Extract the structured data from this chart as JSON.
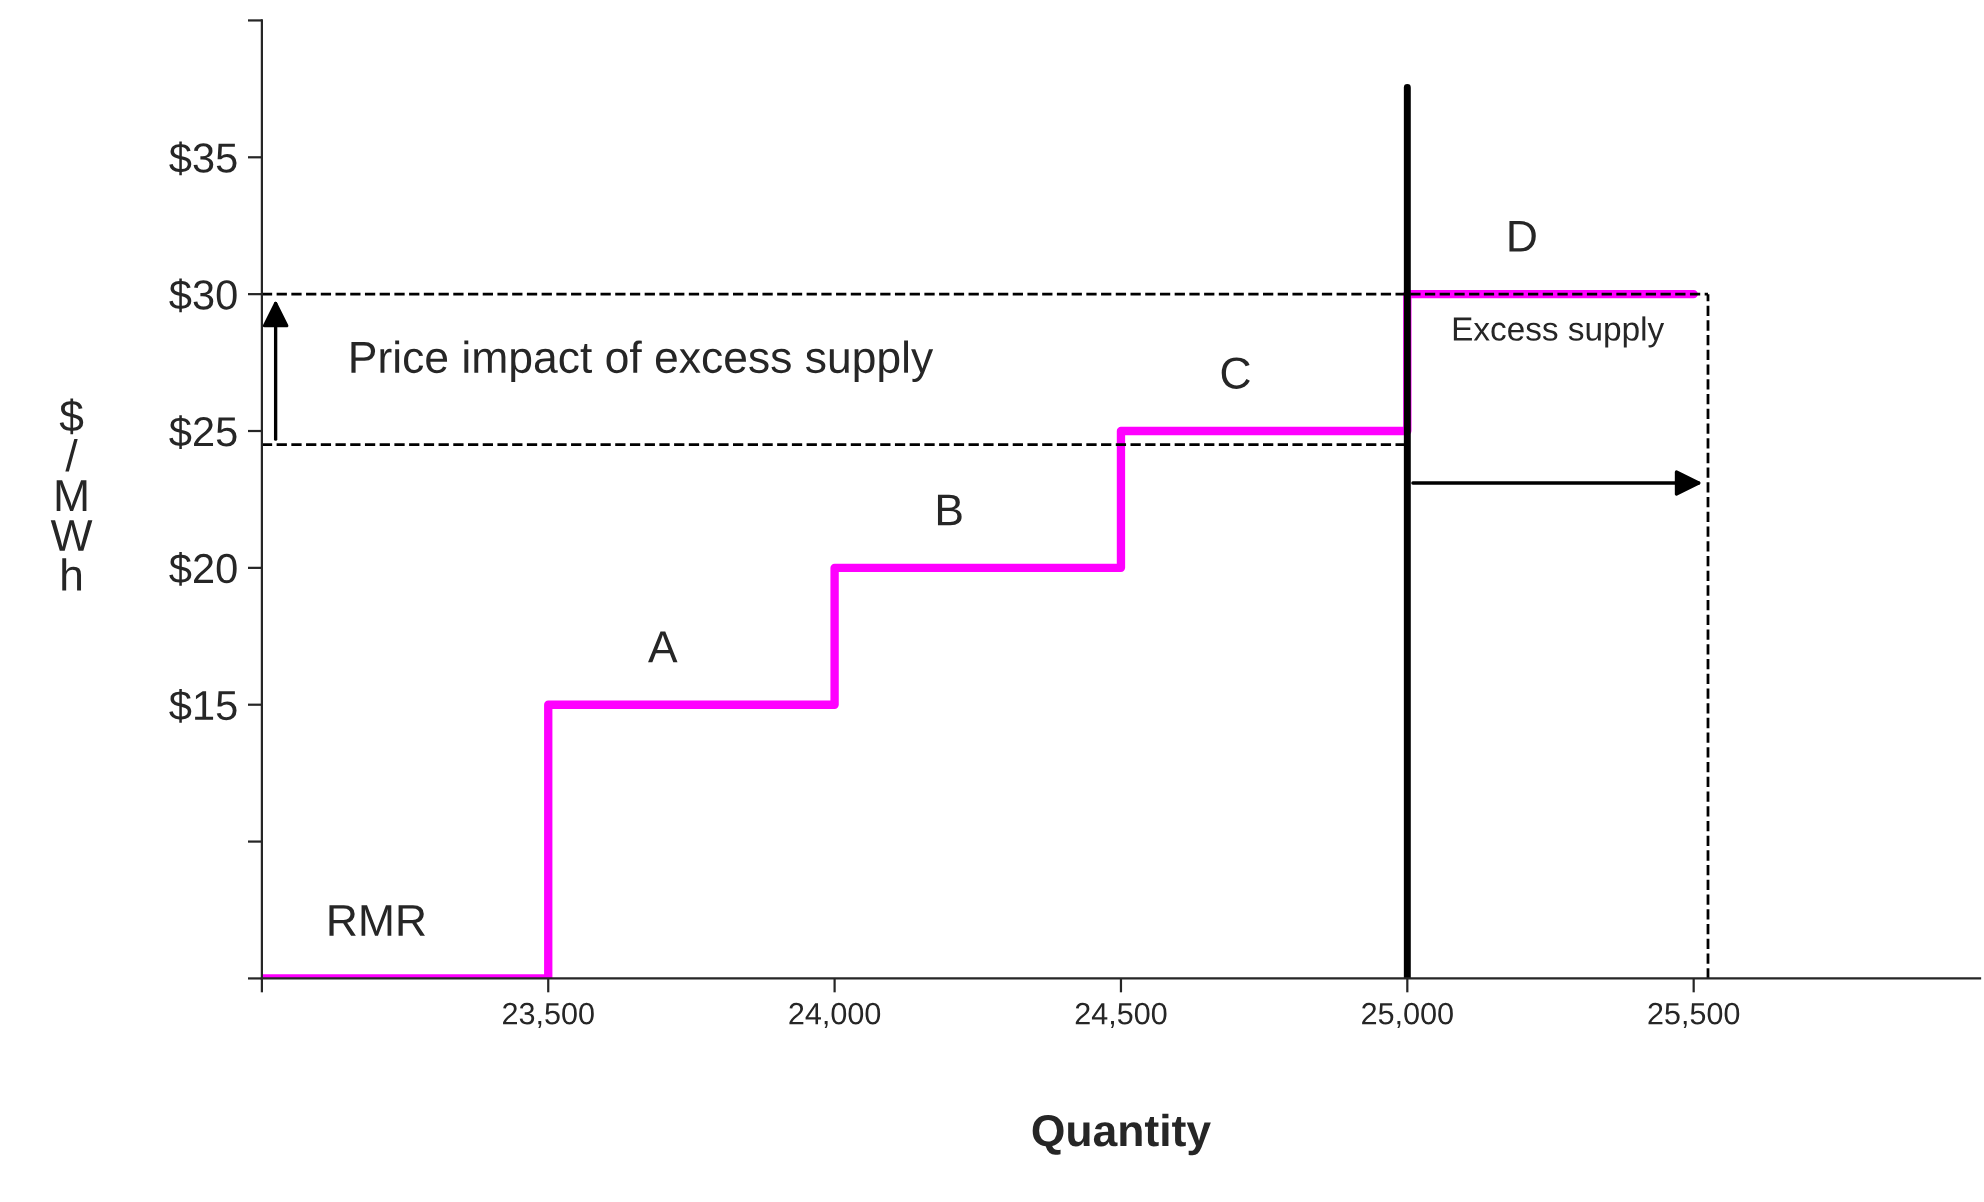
{
  "chart_data": {
    "type": "step",
    "xlabel": "Quantity",
    "ylabel": "$/MWh",
    "x": [
      23000,
      23500,
      24000,
      24500,
      25000,
      25500
    ],
    "series": [
      {
        "color": "#ff00ff",
        "values": [
          5,
          15,
          20,
          25,
          30,
          30
        ]
      }
    ],
    "xlim": [
      23000,
      26000
    ],
    "xticks": [
      {
        "value": 23000,
        "label": null
      },
      {
        "value": 23500,
        "label": "23,500"
      },
      {
        "value": 24000,
        "label": "24,000"
      },
      {
        "value": 24500,
        "label": "24,500"
      },
      {
        "value": 25000,
        "label": "25,000"
      },
      {
        "value": 25500,
        "label": "25,500"
      }
    ],
    "ylim": [
      5,
      40
    ],
    "yticks": [
      {
        "value": 5,
        "label": null
      },
      {
        "value": 10,
        "label": null
      },
      {
        "value": 15,
        "label": "$15"
      },
      {
        "value": 20,
        "label": "$20"
      },
      {
        "value": 25,
        "label": "$25"
      },
      {
        "value": 30,
        "label": "$30"
      },
      {
        "value": 35,
        "label": "$35"
      },
      {
        "value": 40,
        "label": null
      }
    ],
    "ref_lines": [
      {
        "axis": "x",
        "value": 25000,
        "color": "#000000",
        "line_style": "solid"
      },
      {
        "axis": "x",
        "value": 25525,
        "color": "#000000",
        "line_style": "dashed"
      },
      {
        "axis": "y",
        "value": 30,
        "color": "#000000",
        "line_style": "dashed"
      },
      {
        "axis": "y",
        "value": 24.5,
        "color": "#000000",
        "line_style": "dashed"
      }
    ],
    "annotations": [
      "RMR",
      "A",
      "B",
      "C",
      "D",
      "Price impact of excess supply",
      "Excess supply"
    ],
    "grid": false,
    "line_style": "solid",
    "marker": "none"
  }
}
